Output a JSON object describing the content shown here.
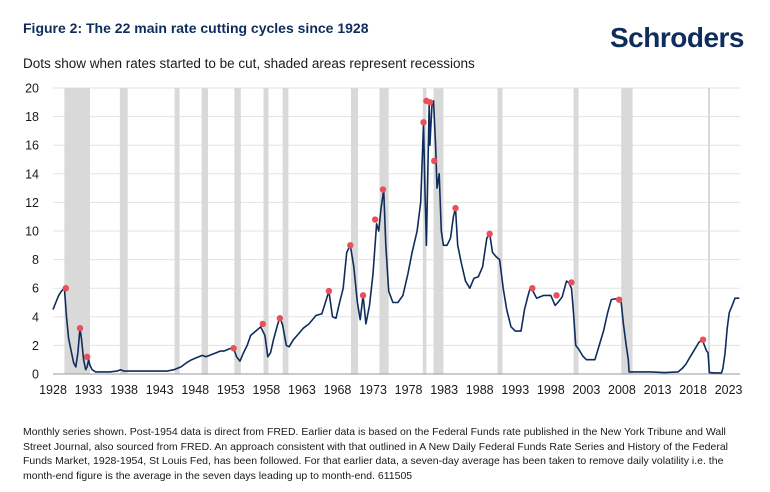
{
  "header": {
    "title": "Figure 2: The 22 main rate cutting cycles since 1928",
    "logo": "Schroders",
    "subtitle": "Dots show when rates started to be cut, shaded areas represent recessions"
  },
  "footnote": "Monthly series shown. Post-1954 data is direct from FRED. Earlier data is based on the Federal Funds rate published in the New York Tribune and Wall Street Journal, also sourced from FRED. An approach consistent with that outlined in A New Daily Federal Funds Rate Series and History of the Federal Funds Market, 1928-1954, St Louis Fed, has been followed. For that earlier data, a seven-day average has been taken to remove daily volatility i.e. the month-end figure is the average in the seven days leading up to month-end. 611505",
  "colors": {
    "line": "#0f2d5c",
    "dot": "#e8505b",
    "recession": "#d9d9d9",
    "grid": "#e3e3e3",
    "brand": "#0f2d5c"
  },
  "chart_data": {
    "type": "line",
    "title": "Figure 2: The 22 main rate cutting cycles since 1928",
    "subtitle": "Dots show when rates started to be cut, shaded areas represent recessions",
    "xlim": [
      1928,
      2024.6
    ],
    "ylim": [
      0,
      20
    ],
    "xticks": [
      "1928",
      "1933",
      "1938",
      "1943",
      "1948",
      "1953",
      "1958",
      "1963",
      "1968",
      "1973",
      "1978",
      "1983",
      "1988",
      "1993",
      "1998",
      "2003",
      "2008",
      "2013",
      "2018",
      "2023"
    ],
    "yticks": [
      "0",
      "2",
      "4",
      "6",
      "8",
      "10",
      "12",
      "14",
      "16",
      "18",
      "20"
    ],
    "grid": "horizontal",
    "legend": "none",
    "recessions": [
      [
        1929.6,
        1933.2
      ],
      [
        1937.4,
        1938.5
      ],
      [
        1945.1,
        1945.8
      ],
      [
        1948.9,
        1949.8
      ],
      [
        1953.5,
        1954.4
      ],
      [
        1957.6,
        1958.3
      ],
      [
        1960.3,
        1961.1
      ],
      [
        1969.9,
        1970.9
      ],
      [
        1973.9,
        1975.2
      ],
      [
        1980.0,
        1980.5
      ],
      [
        1981.5,
        1982.9
      ],
      [
        1990.5,
        1991.2
      ],
      [
        2001.2,
        2001.9
      ],
      [
        2007.9,
        2009.5
      ],
      [
        2020.1,
        2020.3
      ]
    ],
    "series": [
      {
        "x": [
          1928.0,
          1928.4,
          1928.8,
          1929.2,
          1929.6,
          1929.9,
          1930.2,
          1930.6,
          1930.9,
          1931.2,
          1931.5,
          1931.8,
          1932.0,
          1932.3,
          1932.6,
          1932.8,
          1933.0,
          1933.2,
          1933.5,
          1934.0,
          1936.0,
          1937.0,
          1937.5,
          1938.0,
          1940.0,
          1942.0,
          1944.0,
          1945.0,
          1945.5,
          1946.0,
          1946.8,
          1947.5,
          1948.0,
          1948.5,
          1949.0,
          1949.5,
          1950.0,
          1950.5,
          1951.0,
          1951.5,
          1952.0,
          1952.5,
          1953.0,
          1953.4,
          1953.8,
          1954.3,
          1954.8,
          1955.3,
          1955.8,
          1956.5,
          1957.2,
          1957.8,
          1958.2,
          1958.6,
          1959.0,
          1959.5,
          1959.9,
          1960.3,
          1960.8,
          1961.2,
          1961.8,
          1962.5,
          1963.2,
          1964.0,
          1965.0,
          1965.8,
          1966.3,
          1966.8,
          1967.3,
          1967.8,
          1968.3,
          1968.8,
          1969.3,
          1969.8,
          1970.3,
          1970.8,
          1971.2,
          1971.6,
          1972.0,
          1972.5,
          1973.0,
          1973.5,
          1973.8,
          1974.1,
          1974.5,
          1974.8,
          1975.2,
          1975.8,
          1976.5,
          1977.2,
          1977.9,
          1978.5,
          1979.2,
          1979.7,
          1980.1,
          1980.3,
          1980.5,
          1980.9,
          1981.0,
          1981.3,
          1981.5,
          1981.8,
          1982.0,
          1982.3,
          1982.6,
          1982.9,
          1983.4,
          1983.9,
          1984.3,
          1984.6,
          1984.9,
          1985.4,
          1986.0,
          1986.6,
          1987.2,
          1987.8,
          1988.4,
          1989.0,
          1989.4,
          1989.8,
          1990.3,
          1990.8,
          1991.3,
          1991.8,
          1992.4,
          1993.0,
          1993.8,
          1994.3,
          1994.8,
          1995.1,
          1995.5,
          1996.0,
          1997.0,
          1998.0,
          1998.6,
          1999.0,
          1999.6,
          2000.2,
          2000.5,
          2000.9,
          2001.2,
          2001.5,
          2001.9,
          2002.5,
          2003.0,
          2003.5,
          2004.2,
          2004.8,
          2005.4,
          2006.0,
          2006.5,
          2007.0,
          2007.6,
          2007.9,
          2008.2,
          2008.6,
          2008.9,
          2009.0,
          2010.0,
          2012.0,
          2014.0,
          2015.9,
          2016.5,
          2017.0,
          2017.6,
          2018.2,
          2018.8,
          2019.3,
          2019.6,
          2019.9,
          2020.1,
          2020.3,
          2021.0,
          2022.0,
          2022.2,
          2022.5,
          2022.8,
          2023.1,
          2023.5,
          2023.9,
          2024.5
        ],
        "values": [
          4.5,
          5.0,
          5.5,
          5.8,
          6.0,
          4.0,
          2.5,
          1.5,
          0.8,
          0.5,
          1.5,
          3.2,
          2.5,
          1.0,
          0.3,
          0.5,
          1.0,
          0.6,
          0.3,
          0.15,
          0.15,
          0.2,
          0.3,
          0.2,
          0.2,
          0.2,
          0.2,
          0.3,
          0.4,
          0.5,
          0.8,
          1.0,
          1.1,
          1.2,
          1.3,
          1.2,
          1.3,
          1.4,
          1.5,
          1.6,
          1.6,
          1.7,
          1.8,
          1.8,
          1.2,
          0.9,
          1.5,
          2.0,
          2.7,
          3.0,
          3.3,
          2.7,
          1.2,
          1.5,
          2.4,
          3.3,
          4.0,
          3.4,
          2.0,
          1.9,
          2.4,
          2.8,
          3.2,
          3.5,
          4.1,
          4.2,
          5.0,
          5.8,
          4.0,
          3.9,
          5.0,
          6.0,
          8.5,
          9.0,
          7.5,
          5.0,
          3.8,
          5.5,
          3.5,
          4.8,
          7.0,
          10.5,
          10.0,
          11.5,
          12.9,
          9.0,
          5.8,
          5.0,
          5.0,
          5.5,
          7.0,
          8.5,
          10.0,
          12.0,
          17.5,
          13.0,
          9.0,
          19.0,
          16.0,
          19.0,
          19.1,
          16.0,
          13.0,
          14.0,
          10.0,
          9.0,
          9.0,
          9.5,
          11.0,
          11.6,
          9.0,
          7.8,
          6.5,
          6.0,
          6.7,
          6.8,
          7.5,
          9.5,
          9.8,
          8.5,
          8.2,
          8.0,
          6.0,
          4.5,
          3.3,
          3.0,
          3.0,
          4.5,
          5.5,
          6.0,
          5.8,
          5.3,
          5.5,
          5.5,
          4.8,
          5.0,
          5.4,
          6.5,
          6.4,
          6.0,
          4.2,
          2.0,
          1.75,
          1.25,
          1.0,
          1.0,
          1.0,
          2.0,
          3.0,
          4.3,
          5.2,
          5.25,
          5.25,
          5.0,
          3.5,
          2.0,
          1.0,
          0.15,
          0.15,
          0.15,
          0.1,
          0.15,
          0.4,
          0.7,
          1.2,
          1.7,
          2.2,
          2.4,
          2.0,
          1.6,
          1.5,
          0.1,
          0.08,
          0.08,
          0.4,
          1.5,
          3.2,
          4.3,
          4.8,
          5.3,
          5.3
        ]
      }
    ],
    "cut_points": [
      [
        1929.8,
        6.0
      ],
      [
        1931.8,
        3.2
      ],
      [
        1932.8,
        1.2
      ],
      [
        1953.4,
        1.8
      ],
      [
        1957.5,
        3.5
      ],
      [
        1959.9,
        3.9
      ],
      [
        1966.8,
        5.8
      ],
      [
        1969.8,
        9.0
      ],
      [
        1971.6,
        5.5
      ],
      [
        1973.3,
        10.8
      ],
      [
        1974.4,
        12.9
      ],
      [
        1980.1,
        17.6
      ],
      [
        1980.5,
        19.1
      ],
      [
        1981.0,
        19.0
      ],
      [
        1981.6,
        14.9
      ],
      [
        1984.6,
        11.6
      ],
      [
        1989.4,
        9.8
      ],
      [
        1995.4,
        6.0
      ],
      [
        1998.8,
        5.5
      ],
      [
        2000.9,
        6.4
      ],
      [
        2007.6,
        5.2
      ],
      [
        2019.4,
        2.4
      ]
    ]
  }
}
